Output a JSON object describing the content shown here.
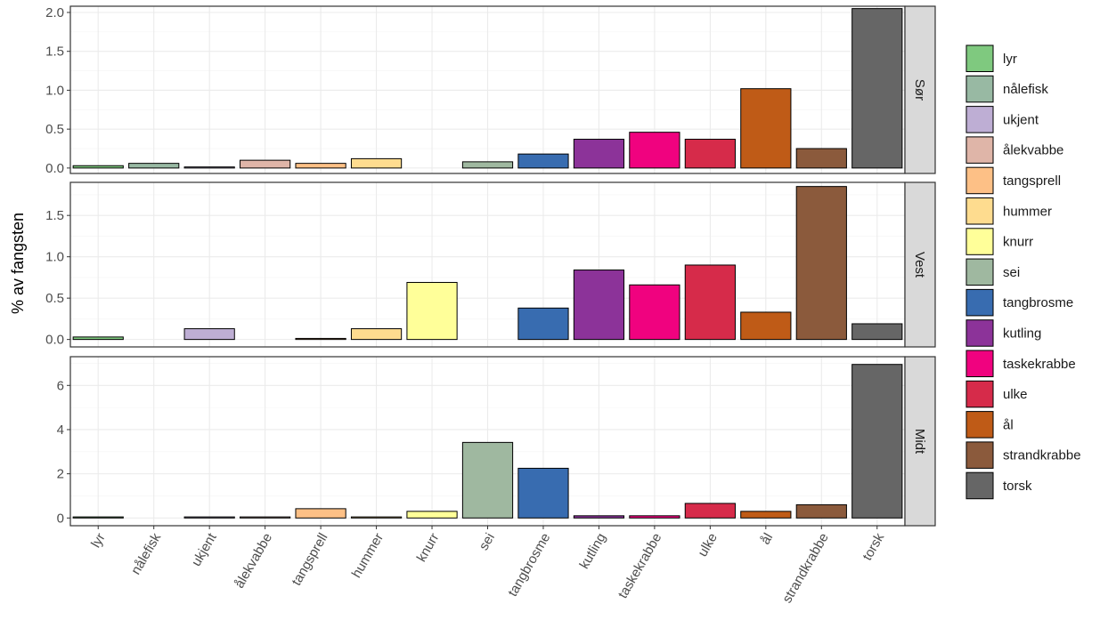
{
  "chart_data": {
    "type": "bar",
    "ylabel": "% av fangsten",
    "categories": [
      "lyr",
      "nålefisk",
      "ukjent",
      "ålekvabbe",
      "tangsprell",
      "hummer",
      "knurr",
      "sei",
      "tangbrosme",
      "kutling",
      "taskekrabbe",
      "ulke",
      "ål",
      "strandkrabbe",
      "torsk"
    ],
    "colors": {
      "lyr": "#7fc97f",
      "nålefisk": "#98b9a3",
      "ukjent": "#beaed4",
      "ålekvabbe": "#dfb5a8",
      "tangsprell": "#fdc086",
      "hummer": "#fedc8f",
      "knurr": "#ffff99",
      "sei": "#9fb8a0",
      "tangbrosme": "#386cb0",
      "kutling": "#8c3399",
      "taskekrabbe": "#f0027f",
      "ulke": "#d62b4a",
      "ål": "#bf5b17",
      "strandkrabbe": "#8b5a3c",
      "torsk": "#666666"
    },
    "legend": {
      "position": "right",
      "entries": [
        "lyr",
        "nålefisk",
        "ukjent",
        "ålekvabbe",
        "tangsprell",
        "hummer",
        "knurr",
        "sei",
        "tangbrosme",
        "kutling",
        "taskekrabbe",
        "ulke",
        "ål",
        "strandkrabbe",
        "torsk"
      ]
    },
    "grid": true,
    "panels": [
      {
        "name": "Sør",
        "ylim": [
          -0.07,
          2.08
        ],
        "yticks": [
          0.0,
          0.5,
          1.0,
          1.5,
          2.0
        ],
        "ytick_labels": [
          "0.0",
          "0.5",
          "1.0",
          "1.5",
          "2.0"
        ],
        "values": [
          0.03,
          0.06,
          0.01,
          0.1,
          0.06,
          0.12,
          null,
          0.08,
          0.18,
          0.37,
          0.46,
          0.37,
          1.02,
          0.25,
          2.05
        ]
      },
      {
        "name": "Vest",
        "ylim": [
          -0.09,
          1.9
        ],
        "yticks": [
          0.0,
          0.5,
          1.0,
          1.5
        ],
        "ytick_labels": [
          "0.0",
          "0.5",
          "1.0",
          "1.5"
        ],
        "values": [
          0.03,
          null,
          0.13,
          null,
          0.005,
          0.13,
          0.69,
          null,
          0.38,
          0.84,
          0.66,
          0.9,
          0.33,
          1.85,
          0.19
        ]
      },
      {
        "name": "Midt",
        "ylim": [
          -0.35,
          7.3
        ],
        "yticks": [
          0,
          2,
          4,
          6
        ],
        "ytick_labels": [
          "0",
          "2",
          "4",
          "6"
        ],
        "values": [
          0.02,
          null,
          0.02,
          0.02,
          0.42,
          0.02,
          0.3,
          3.42,
          2.25,
          0.1,
          0.1,
          0.66,
          0.3,
          0.6,
          6.95
        ]
      }
    ]
  }
}
